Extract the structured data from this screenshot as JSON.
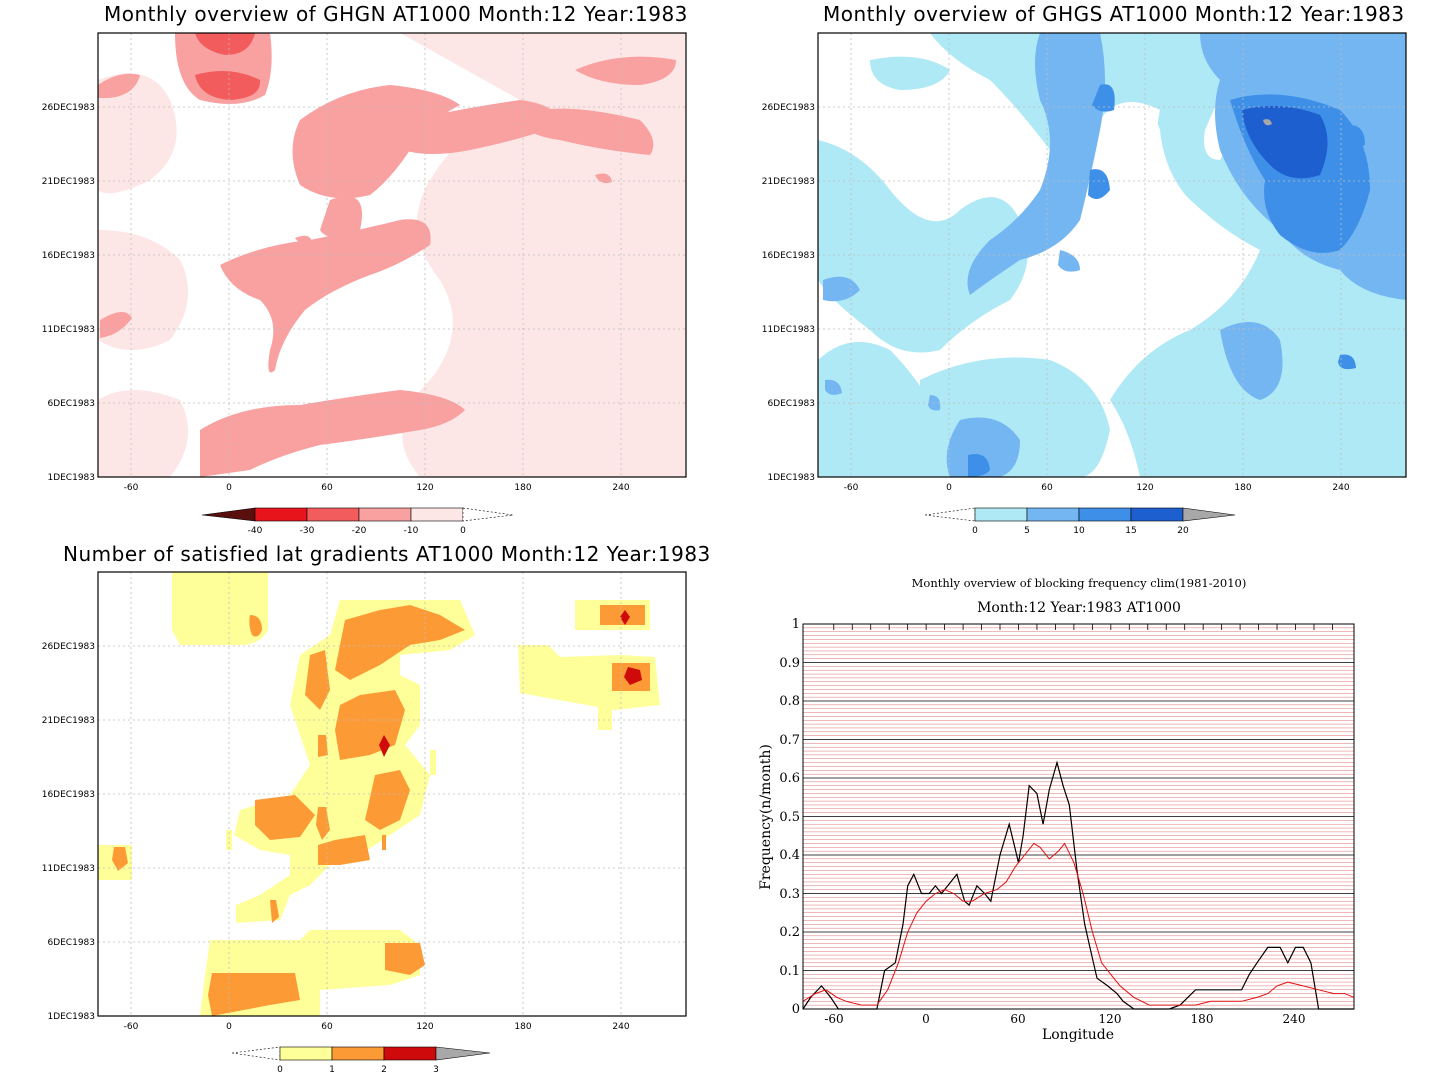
{
  "panels": {
    "ghgn": {
      "title": "Monthly overview of GHGN AT1000 Month:12 Year:1983",
      "y_ticks": [
        "26DEC1983",
        "21DEC1983",
        "16DEC1983",
        "11DEC1983",
        "6DEC1983",
        "1DEC1983"
      ],
      "x_ticks": [
        "-60",
        "0",
        "60",
        "120",
        "180",
        "240"
      ],
      "colorbar": {
        "labels": [
          "-40",
          "-30",
          "-20",
          "-10",
          "0"
        ],
        "colors": [
          "#5a0f0f",
          "#e8141b",
          "#f25c5c",
          "#f9a0a0",
          "#fde6e6",
          "#ffffff"
        ]
      }
    },
    "ghgs": {
      "title": "Monthly overview of GHGS AT1000 Month:12 Year:1983",
      "y_ticks": [
        "26DEC1983",
        "21DEC1983",
        "16DEC1983",
        "11DEC1983",
        "6DEC1983",
        "1DEC1983"
      ],
      "x_ticks": [
        "-60",
        "0",
        "60",
        "120",
        "180",
        "240"
      ],
      "colorbar": {
        "labels": [
          "0",
          "5",
          "10",
          "15",
          "20"
        ],
        "colors": [
          "#ffffff",
          "#aee9f5",
          "#74b6f2",
          "#3e8fe8",
          "#1e5fd0",
          "#a8a8a8"
        ]
      }
    },
    "gradients": {
      "title": "Number of satisfied lat gradients AT1000 Month:12 Year:1983",
      "y_ticks": [
        "26DEC1983",
        "21DEC1983",
        "16DEC1983",
        "11DEC1983",
        "6DEC1983",
        "1DEC1983"
      ],
      "x_ticks": [
        "-60",
        "0",
        "60",
        "120",
        "180",
        "240"
      ],
      "colorbar": {
        "labels": [
          "0",
          "1",
          "2",
          "3"
        ],
        "colors": [
          "#ffffff",
          "#ffff99",
          "#fc9a36",
          "#cf0a0a",
          "#a8a8a8"
        ]
      }
    },
    "frequency": {
      "title1": "Monthly overview of blocking frequency clim(1981-2010)",
      "title2": "Month:12 Year:1983  AT1000",
      "xlabel": "Longitude",
      "ylabel": "Frequency(n/month)",
      "x_ticks": [
        "-60",
        "0",
        "60",
        "120",
        "180",
        "240"
      ],
      "y_ticks": [
        "0",
        "0.1",
        "0.2",
        "0.3",
        "0.4",
        "0.5",
        "0.6",
        "0.7",
        "0.8",
        "0.9",
        "1"
      ]
    }
  },
  "chart_data": [
    {
      "type": "heatmap",
      "title": "Monthly overview of GHGN AT1000 Month:12 Year:1983",
      "x_range": [
        -90,
        270
      ],
      "y_range": [
        "1DEC1983",
        "31DEC1983"
      ],
      "colorbar_levels": [
        -40,
        -30,
        -20,
        -10,
        0
      ]
    },
    {
      "type": "heatmap",
      "title": "Monthly overview of GHGS AT1000 Month:12 Year:1983",
      "x_range": [
        -90,
        270
      ],
      "y_range": [
        "1DEC1983",
        "31DEC1983"
      ],
      "colorbar_levels": [
        0,
        5,
        10,
        15,
        20
      ]
    },
    {
      "type": "heatmap",
      "title": "Number of satisfied lat gradients AT1000 Month:12 Year:1983",
      "x_range": [
        -90,
        270
      ],
      "y_range": [
        "1DEC1983",
        "31DEC1983"
      ],
      "colorbar_levels": [
        0,
        1,
        2,
        3
      ]
    },
    {
      "type": "line",
      "title": "Monthly overview of blocking frequency clim(1981-2010)",
      "subtitle": "Month:12 Year:1983  AT1000",
      "xlabel": "Longitude",
      "ylabel": "Frequency(n/month)",
      "xlim": [
        -80,
        278
      ],
      "ylim": [
        0,
        1
      ],
      "series": [
        {
          "color": "#000000",
          "x": [
            -80,
            -75,
            -68,
            -62,
            -57,
            -50,
            -40,
            -32,
            -27,
            -20,
            -15,
            -12,
            -8,
            -3,
            2,
            6,
            10,
            14,
            20,
            25,
            28,
            33,
            38,
            42,
            48,
            54,
            60,
            63,
            67,
            72,
            76,
            80,
            85,
            89,
            93,
            98,
            103,
            107,
            111,
            118,
            124,
            128,
            135,
            145,
            158,
            165,
            175,
            180,
            195,
            205,
            210,
            215,
            222,
            230,
            235,
            240,
            245,
            250,
            255,
            260,
            270,
            278
          ],
          "y": [
            0,
            0.03,
            0.06,
            0.03,
            0,
            0,
            0,
            0,
            0.1,
            0.12,
            0.22,
            0.32,
            0.35,
            0.3,
            0.3,
            0.32,
            0.3,
            0.32,
            0.35,
            0.28,
            0.27,
            0.32,
            0.3,
            0.28,
            0.4,
            0.48,
            0.38,
            0.45,
            0.58,
            0.56,
            0.48,
            0.57,
            0.64,
            0.58,
            0.53,
            0.36,
            0.22,
            0.15,
            0.08,
            0.06,
            0.04,
            0.02,
            0,
            0,
            0,
            0.01,
            0.05,
            0.05,
            0.05,
            0.05,
            0.09,
            0.12,
            0.16,
            0.16,
            0.12,
            0.16,
            0.16,
            0.12,
            0,
            0,
            0,
            0
          ]
        },
        {
          "color": "#e01010",
          "x": [
            -80,
            -72,
            -65,
            -58,
            -52,
            -42,
            -32,
            -25,
            -18,
            -12,
            -6,
            0,
            6,
            12,
            18,
            24,
            30,
            38,
            46,
            52,
            58,
            64,
            70,
            74,
            80,
            86,
            90,
            96,
            102,
            108,
            114,
            120,
            126,
            135,
            145,
            155,
            165,
            175,
            185,
            195,
            205,
            215,
            222,
            228,
            235,
            245,
            255,
            265,
            272,
            278
          ],
          "y": [
            0.02,
            0.04,
            0.05,
            0.03,
            0.02,
            0.01,
            0.01,
            0.05,
            0.12,
            0.2,
            0.25,
            0.28,
            0.3,
            0.31,
            0.3,
            0.28,
            0.28,
            0.3,
            0.31,
            0.33,
            0.37,
            0.4,
            0.43,
            0.42,
            0.39,
            0.41,
            0.43,
            0.38,
            0.3,
            0.2,
            0.12,
            0.09,
            0.06,
            0.03,
            0.01,
            0.01,
            0.01,
            0.01,
            0.02,
            0.02,
            0.02,
            0.03,
            0.04,
            0.06,
            0.07,
            0.06,
            0.05,
            0.04,
            0.04,
            0.03
          ]
        }
      ]
    }
  ]
}
